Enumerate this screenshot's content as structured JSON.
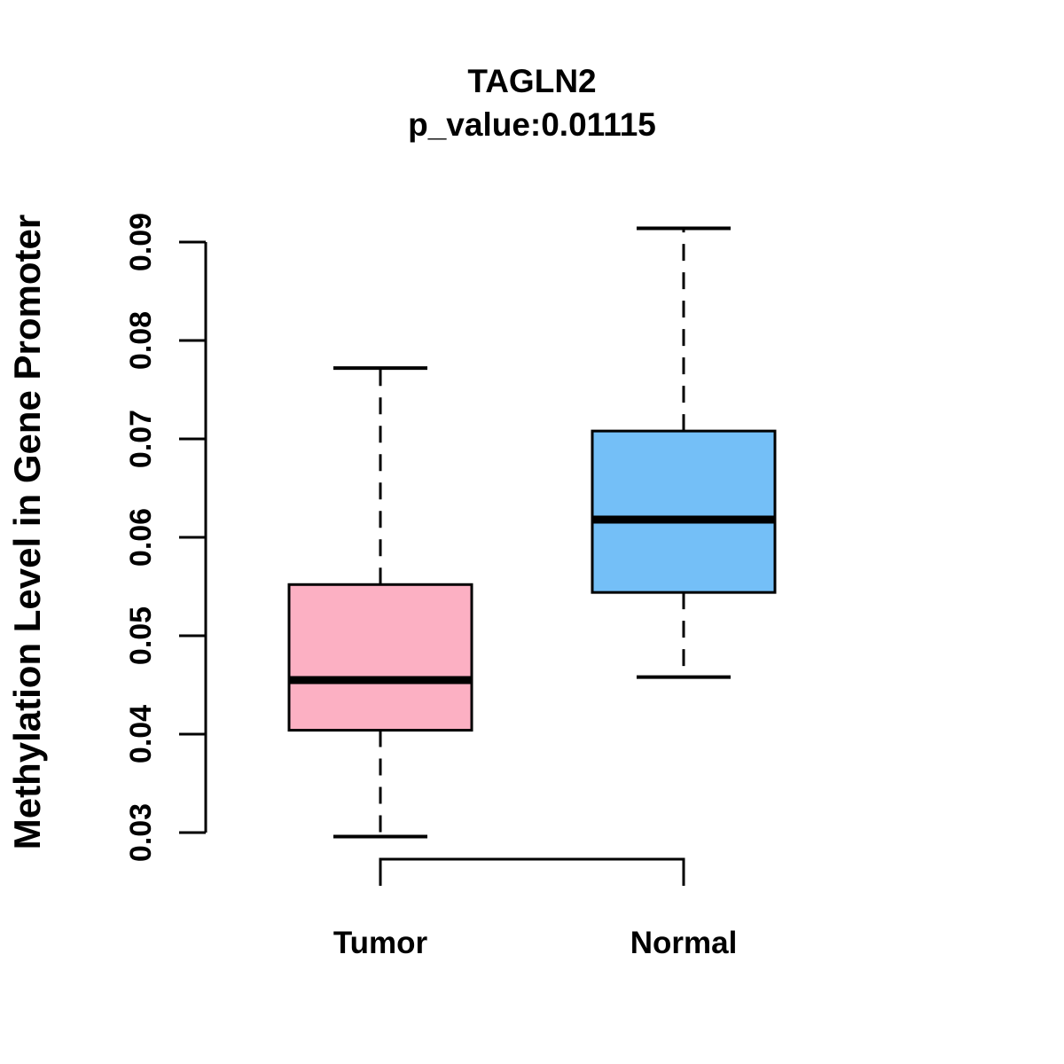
{
  "figure": {
    "title": "TAGLN2",
    "subtitle": "p_value:0.01115"
  },
  "chart_data": {
    "type": "boxplot",
    "title": "TAGLN2",
    "subtitle": "p_value:0.01115",
    "ylabel": "Methylation Level in Gene Promoter",
    "xlabel": "",
    "categories": [
      "Tumor",
      "Normal"
    ],
    "y_axis": {
      "min": 0.03,
      "max": 0.09,
      "ticks": [
        0.03,
        0.04,
        0.05,
        0.06,
        0.07,
        0.08,
        0.09
      ],
      "tick_labels": [
        "0.03",
        "0.04",
        "0.05",
        "0.06",
        "0.07",
        "0.08",
        "0.09"
      ]
    },
    "series": [
      {
        "name": "Tumor",
        "color": "#FCB0C3",
        "whisker_low": 0.0296,
        "q1": 0.0404,
        "median": 0.0455,
        "q3": 0.0552,
        "whisker_high": 0.0772
      },
      {
        "name": "Normal",
        "color": "#74BFF7",
        "whisker_low": 0.0458,
        "q1": 0.0544,
        "median": 0.0618,
        "q3": 0.0708,
        "whisker_high": 0.0914
      }
    ],
    "legend": "none",
    "grid": false
  },
  "colors": {
    "background": "#FFFFFF",
    "stroke": "#000000",
    "tumor_fill": "#FCB0C3",
    "normal_fill": "#74BFF7"
  }
}
